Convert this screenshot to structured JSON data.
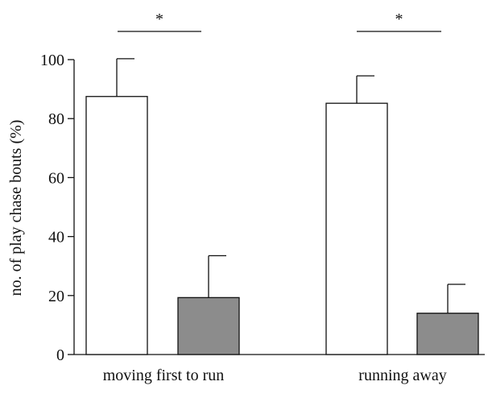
{
  "chart_data": {
    "type": "bar",
    "title": "",
    "xlabel": "",
    "ylabel": "no. of play chase bouts (%)",
    "ylim": [
      0,
      100
    ],
    "yticks": [
      0,
      20,
      40,
      60,
      80,
      100
    ],
    "categories": [
      "moving first to run",
      "running away"
    ],
    "series": [
      {
        "values": [
          87.5,
          85.2
        ],
        "errors": [
          12.8,
          9.3
        ],
        "color": "#ffffff"
      },
      {
        "values": [
          19.3,
          14.0
        ],
        "errors": [
          14.2,
          9.8
        ],
        "color": "#8c8c8c"
      }
    ],
    "significance": [
      "*",
      "*"
    ],
    "grid": false,
    "legend": "none"
  },
  "colors": {
    "axis": "#111111",
    "bar_outline": "#111111"
  }
}
